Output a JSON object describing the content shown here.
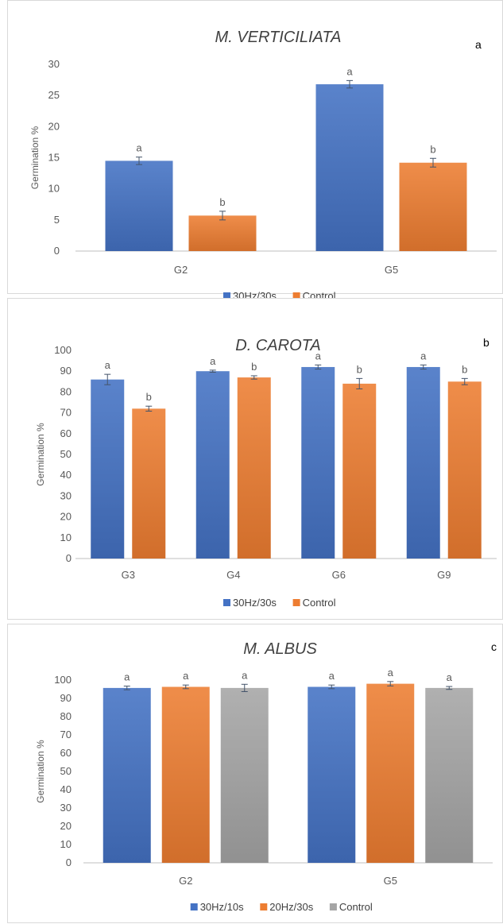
{
  "chart_data": [
    {
      "type": "bar",
      "title": "M. VERTICILIATA",
      "panel_label": "a",
      "ylabel": "Germination %",
      "xlabel": "",
      "categories": [
        "G2",
        "G5"
      ],
      "ylim": [
        0,
        30
      ],
      "yticks": [
        "0",
        "5",
        "10",
        "15",
        "20",
        "25",
        "30"
      ],
      "series": [
        {
          "name": "30Hz/30s",
          "values": [
            14.5,
            26.8
          ],
          "errors": [
            0.6,
            0.6
          ],
          "labels": [
            "a",
            "a"
          ],
          "color": "#4472c4"
        },
        {
          "name": "Control",
          "values": [
            5.7,
            14.2
          ],
          "errors": [
            0.7,
            0.7
          ],
          "labels": [
            "b",
            "b"
          ],
          "color": "#ed7d31"
        }
      ],
      "legend": "bottom",
      "grid": false
    },
    {
      "type": "bar",
      "title": "D. CAROTA",
      "panel_label": "b",
      "ylabel": "Germination %",
      "xlabel": "",
      "categories": [
        "G3",
        "G4",
        "G6",
        "G9"
      ],
      "ylim": [
        0,
        100
      ],
      "yticks": [
        "0",
        "10",
        "20",
        "30",
        "40",
        "50",
        "60",
        "70",
        "80",
        "90",
        "100"
      ],
      "series": [
        {
          "name": "30Hz/30s",
          "values": [
            86,
            90,
            92,
            92
          ],
          "errors": [
            2.5,
            0.5,
            1.0,
            1.0
          ],
          "labels": [
            "a",
            "a",
            "a",
            "a"
          ],
          "color": "#4472c4"
        },
        {
          "name": "Control",
          "values": [
            72,
            87,
            84,
            85
          ],
          "errors": [
            1.2,
            0.8,
            2.5,
            1.5
          ],
          "labels": [
            "b",
            "b",
            "b",
            "b"
          ],
          "color": "#ed7d31"
        }
      ],
      "legend": "bottom",
      "grid": false
    },
    {
      "type": "bar",
      "title": "M. ALBUS",
      "panel_label": "c",
      "ylabel": "Germination %",
      "xlabel": "",
      "categories": [
        "G2",
        "G5"
      ],
      "ylim": [
        0,
        100
      ],
      "yticks": [
        "0",
        "10",
        "20",
        "30",
        "40",
        "50",
        "60",
        "70",
        "80",
        "90",
        "100"
      ],
      "series": [
        {
          "name": "30Hz/10s",
          "values": [
            95.7,
            96.3
          ],
          "errors": [
            1.0,
            1.0
          ],
          "labels": [
            "a",
            "a"
          ],
          "color": "#4472c4"
        },
        {
          "name": "20Hz/30s",
          "values": [
            96.3,
            98.0
          ],
          "errors": [
            1.0,
            1.2
          ],
          "labels": [
            "a",
            "a"
          ],
          "color": "#ed7d31"
        },
        {
          "name": "Control",
          "values": [
            95.7,
            95.7
          ],
          "errors": [
            2.0,
            0.8
          ],
          "labels": [
            "a",
            "a"
          ],
          "color": "#a5a5a5"
        }
      ],
      "legend": "bottom",
      "grid": false
    }
  ]
}
